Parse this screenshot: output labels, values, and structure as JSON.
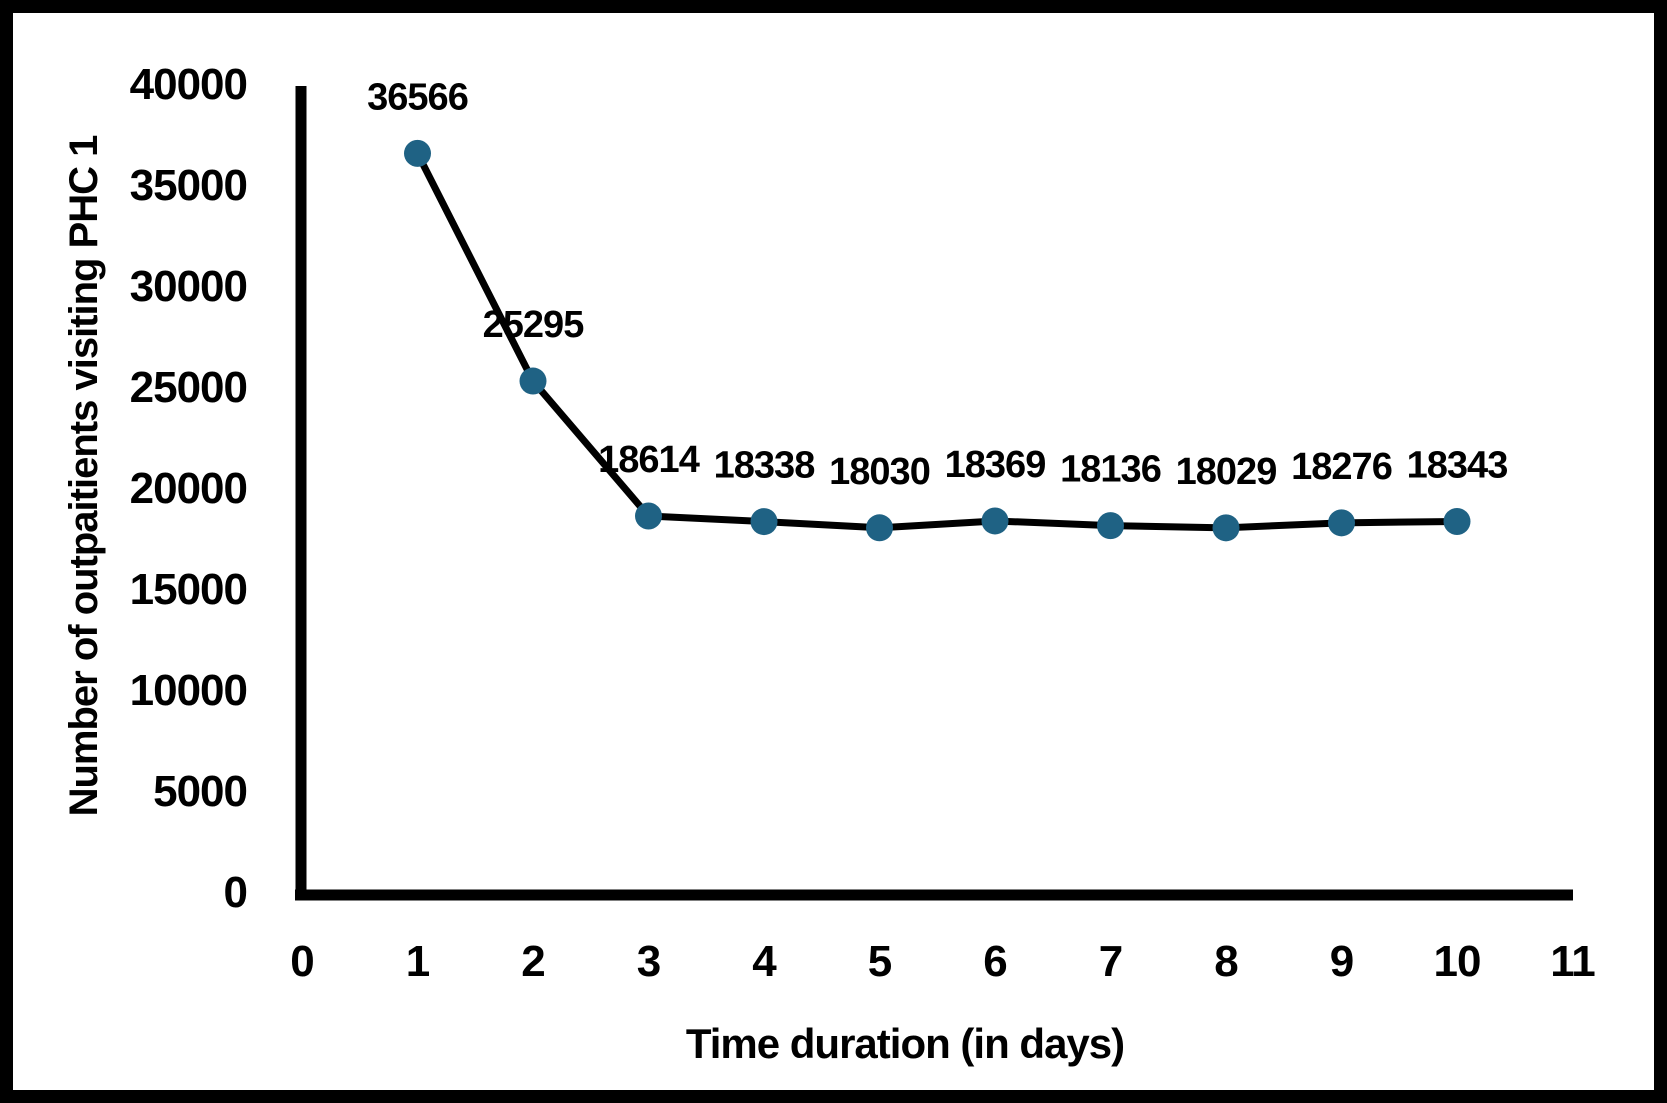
{
  "chart_data": {
    "type": "line",
    "x": [
      1,
      2,
      3,
      4,
      5,
      6,
      7,
      8,
      9,
      10
    ],
    "values": [
      36566,
      25295,
      18614,
      18338,
      18030,
      18369,
      18136,
      18029,
      18276,
      18343
    ],
    "data_labels": [
      "36566",
      "25295",
      "18614",
      "18338",
      "18030",
      "18369",
      "18136",
      "18029",
      "18276",
      "18343"
    ],
    "title": "",
    "xlabel": "Time duration (in days)",
    "ylabel": "Number of outpaitients visiting PHC 1",
    "xlim": [
      0,
      11
    ],
    "ylim": [
      0,
      40000
    ],
    "x_ticks": [
      0,
      1,
      2,
      3,
      4,
      5,
      6,
      7,
      8,
      9,
      10,
      11
    ],
    "y_ticks": [
      0,
      5000,
      10000,
      15000,
      20000,
      25000,
      30000,
      35000,
      40000
    ],
    "grid": false,
    "legend": false,
    "marker_color": "#1F6284",
    "line_color": "#000000",
    "axis_color": "#000000",
    "frame_color": "#000000",
    "background_color": "#FFFFFF"
  }
}
